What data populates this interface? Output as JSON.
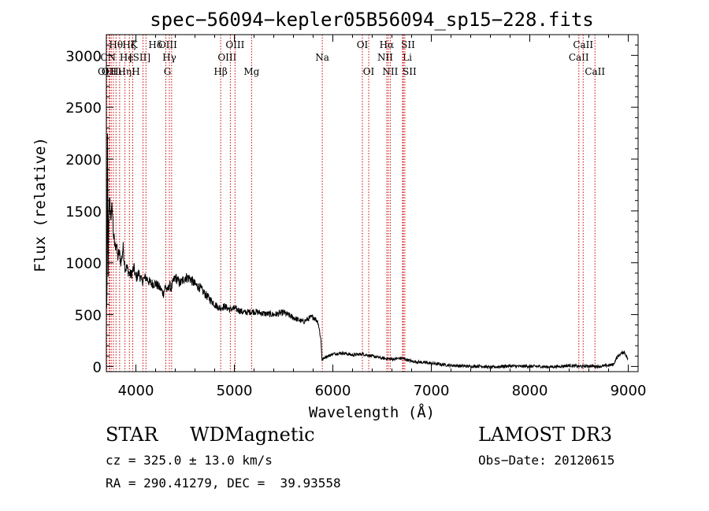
{
  "chart_data": {
    "type": "line",
    "title": "spec−56094−kepler05B56094_sp15−228.fits",
    "xlabel": "Wavelength (Å)",
    "ylabel": "Flux (relative)",
    "xlim": [
      3700,
      9100
    ],
    "ylim": [
      -50,
      3200
    ],
    "xticks": [
      4000,
      5000,
      6000,
      7000,
      8000,
      9000
    ],
    "yticks": [
      0,
      500,
      1000,
      1500,
      2000,
      2500,
      3000
    ],
    "series": [
      {
        "name": "flux",
        "x": [
          3700,
          3705,
          3712,
          3718,
          3725,
          3732,
          3740,
          3750,
          3760,
          3770,
          3780,
          3790,
          3800,
          3815,
          3830,
          3850,
          3870,
          3890,
          3910,
          3930,
          3950,
          3980,
          4000,
          4030,
          4060,
          4100,
          4150,
          4200,
          4250,
          4280,
          4300,
          4320,
          4340,
          4360,
          4380,
          4400,
          4450,
          4500,
          4550,
          4600,
          4650,
          4700,
          4750,
          4800,
          4850,
          4900,
          4950,
          5000,
          5100,
          5200,
          5300,
          5400,
          5500,
          5600,
          5700,
          5750,
          5800,
          5850,
          5880,
          5890,
          5900,
          5920,
          5950,
          6000,
          6100,
          6200,
          6300,
          6400,
          6500,
          6600,
          6700,
          6800,
          6900,
          7000,
          7100,
          7200,
          7300,
          7400,
          7500,
          7600,
          7700,
          7800,
          7900,
          8000,
          8100,
          8200,
          8300,
          8400,
          8500,
          8600,
          8700,
          8800,
          8850,
          8880,
          8920,
          8960,
          9000
        ],
        "y": [
          700,
          500,
          2200,
          900,
          1400,
          1650,
          1500,
          1450,
          1550,
          1300,
          1200,
          1150,
          1200,
          1050,
          1100,
          1000,
          1150,
          950,
          950,
          900,
          880,
          950,
          850,
          900,
          820,
          860,
          800,
          800,
          750,
          700,
          780,
          720,
          790,
          750,
          820,
          860,
          800,
          860,
          850,
          790,
          760,
          700,
          650,
          600,
          560,
          580,
          550,
          560,
          520,
          530,
          510,
          500,
          520,
          470,
          430,
          460,
          480,
          430,
          250,
          60,
          70,
          90,
          100,
          120,
          130,
          110,
          120,
          100,
          80,
          70,
          80,
          50,
          40,
          30,
          20,
          10,
          5,
          0,
          5,
          -10,
          0,
          5,
          0,
          2,
          0,
          -5,
          0,
          10,
          0,
          5,
          0,
          10,
          20,
          80,
          120,
          140,
          60
        ]
      }
    ],
    "lines": [
      {
        "wl": 3705,
        "label": "OII",
        "row": 3,
        "dx": -2
      },
      {
        "wl": 3728,
        "label": "OII",
        "row": 3,
        "dx": 0
      },
      {
        "wl": 3734,
        "label": "CN",
        "row": 2,
        "dx": -2
      },
      {
        "wl": 3750,
        "label": "Hθ",
        "row": 1,
        "dx": 6
      },
      {
        "wl": 3771,
        "label": "Hι",
        "row": 3,
        "dx": 4
      },
      {
        "wl": 3798,
        "label": "Hη",
        "row": 3,
        "dx": 11
      },
      {
        "wl": 3835,
        "label": "Hζ",
        "row": 1,
        "dx": 12
      },
      {
        "wl": 3889,
        "label": "He",
        "row": 2,
        "dx": 2
      },
      {
        "wl": 3934,
        "label": "K",
        "row": 1,
        "dx": 6
      },
      {
        "wl": 3968,
        "label": "H",
        "row": 3,
        "dx": 4
      },
      {
        "wl": 4072,
        "label": "[SII]",
        "row": 2,
        "dx": -4
      },
      {
        "wl": 4102,
        "label": "Hδ",
        "row": 1,
        "dx": 12
      },
      {
        "wl": 4304,
        "label": "G",
        "row": 3,
        "dx": 2
      },
      {
        "wl": 4340,
        "label": "Hγ",
        "row": 2,
        "dx": 0
      },
      {
        "wl": 4363,
        "label": "OIII",
        "row": 1,
        "dx": -5
      },
      {
        "wl": 4861,
        "label": "Hβ",
        "row": 3,
        "dx": 0
      },
      {
        "wl": 4959,
        "label": "OIII",
        "row": 2,
        "dx": -4
      },
      {
        "wl": 5007,
        "label": "OIII",
        "row": 1,
        "dx": 0
      },
      {
        "wl": 5175,
        "label": "Mg",
        "row": 3,
        "dx": 0
      },
      {
        "wl": 5893,
        "label": "Na",
        "row": 2,
        "dx": 0
      },
      {
        "wl": 6300,
        "label": "OI",
        "row": 1,
        "dx": 0
      },
      {
        "wl": 6364,
        "label": "OI",
        "row": 3,
        "dx": 0
      },
      {
        "wl": 6548,
        "label": "NII",
        "row": 2,
        "dx": -2
      },
      {
        "wl": 6563,
        "label": "Hα",
        "row": 1,
        "dx": -2
      },
      {
        "wl": 6583,
        "label": "NII",
        "row": 3,
        "dx": 0
      },
      {
        "wl": 6708,
        "label": "Li",
        "row": 2,
        "dx": 6
      },
      {
        "wl": 6716,
        "label": "SII",
        "row": 1,
        "dx": 6
      },
      {
        "wl": 6731,
        "label": "SII",
        "row": 3,
        "dx": 6
      },
      {
        "wl": 8498,
        "label": "CaII",
        "row": 2,
        "dx": 0
      },
      {
        "wl": 8542,
        "label": "CaII",
        "row": 1,
        "dx": 0
      },
      {
        "wl": 8662,
        "label": "CaII",
        "row": 3,
        "dx": 0
      }
    ]
  },
  "info": {
    "object_class": "STAR",
    "subclass": "WDMagnetic",
    "survey": "LAMOST DR3",
    "redshift": "cz = 325.0 ± 13.0 km/s",
    "obs_date": "Obs−Date: 20120615",
    "coords": "RA = 290.41279, DEC =  39.93558"
  },
  "colors": {
    "axis": "#000000",
    "spectrum": "#000000",
    "line_marker": "#cc0000",
    "background": "#ffffff"
  }
}
